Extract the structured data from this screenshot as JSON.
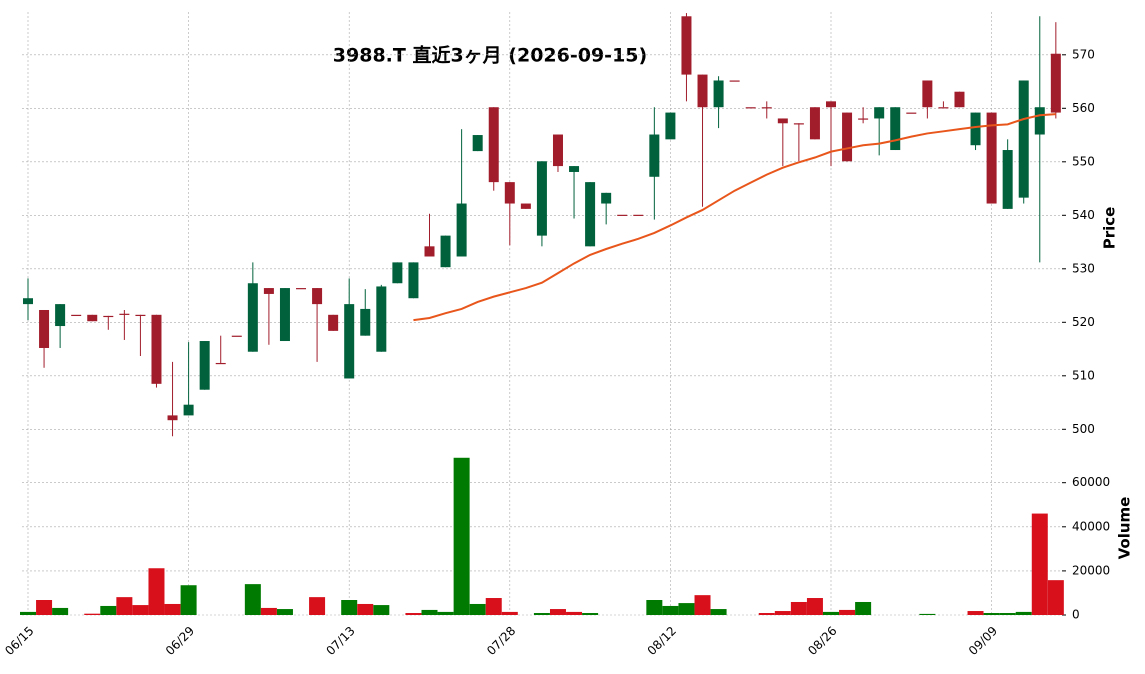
{
  "chart_data": {
    "type": "candlestick",
    "title": "3988.T  直近3ヶ月  (2026-09-15)",
    "y_label": "Price",
    "categories": [
      "06/15",
      null,
      null,
      null,
      null,
      null,
      null,
      null,
      null,
      null,
      "06/29",
      null,
      null,
      null,
      null,
      null,
      null,
      null,
      null,
      null,
      "07/13",
      null,
      null,
      null,
      null,
      null,
      null,
      null,
      null,
      null,
      "07/28",
      null,
      null,
      null,
      null,
      null,
      null,
      null,
      null,
      null,
      "08/12",
      null,
      null,
      null,
      null,
      null,
      null,
      null,
      null,
      null,
      "08/26",
      null,
      null,
      null,
      null,
      null,
      null,
      null,
      null,
      null,
      "09/09",
      null,
      null,
      null,
      null
    ],
    "open": [
      523.4,
      522.3,
      519.3,
      521.4,
      521.4,
      521.2,
      521.6,
      521.4,
      521.4,
      502.6,
      502.6,
      507.4,
      512.4,
      517.5,
      514.5,
      526.4,
      516.5,
      526.4,
      526.4,
      521.4,
      509.5,
      517.5,
      514.5,
      527.3,
      524.5,
      534.2,
      530.3,
      532.3,
      552.0,
      560.2,
      546.2,
      542.2,
      536.2,
      555.1,
      548.1,
      534.2,
      542.2,
      540.1,
      540.1,
      547.2,
      554.2,
      577.2,
      566.3,
      560.2,
      565.2,
      560.2,
      560.2,
      558.1,
      557.2,
      560.2,
      561.3,
      559.2,
      558.1,
      558.1,
      552.2,
      559.2,
      565.2,
      560.2,
      563.1,
      553.1,
      559.2,
      541.2,
      543.3,
      555.1,
      570.2
    ],
    "high": [
      528.2,
      522.3,
      523.4,
      521.4,
      521.4,
      521.2,
      522.3,
      521.4,
      521.4,
      512.6,
      516.3,
      516.5,
      517.5,
      517.5,
      531.2,
      526.4,
      526.4,
      526.4,
      526.4,
      521.4,
      528.2,
      526.2,
      527.0,
      531.2,
      531.2,
      540.3,
      536.2,
      556.1,
      555.0,
      560.2,
      546.2,
      542.2,
      550.1,
      555.1,
      549.2,
      546.2,
      544.2,
      540.1,
      540.1,
      560.2,
      559.2,
      577.8,
      566.3,
      566.0,
      565.2,
      560.2,
      561.3,
      558.1,
      557.2,
      560.2,
      561.3,
      559.2,
      560.2,
      560.2,
      560.2,
      559.2,
      565.2,
      561.3,
      563.1,
      559.2,
      559.2,
      554.2,
      565.2,
      577.2,
      576.1
    ],
    "low": [
      520.4,
      511.5,
      515.2,
      521.4,
      520.2,
      518.6,
      516.7,
      513.7,
      507.8,
      498.7,
      502.6,
      507.4,
      512.4,
      517.5,
      514.5,
      515.8,
      516.5,
      526.4,
      512.6,
      518.4,
      509.5,
      517.5,
      514.5,
      527.3,
      524.5,
      532.3,
      530.3,
      532.3,
      552.0,
      544.6,
      534.4,
      541.2,
      534.2,
      548.1,
      539.4,
      534.2,
      538.3,
      540.1,
      540.1,
      539.2,
      554.2,
      561.3,
      541.6,
      556.3,
      565.2,
      560.2,
      558.1,
      549.2,
      550.1,
      554.2,
      549.2,
      550.1,
      557.2,
      551.2,
      552.2,
      559.2,
      558.1,
      560.2,
      560.2,
      552.2,
      542.2,
      541.2,
      542.2,
      531.2,
      558.1
    ],
    "close": [
      524.5,
      515.2,
      523.4,
      521.4,
      520.2,
      521.2,
      521.6,
      521.4,
      508.5,
      501.7,
      504.6,
      516.5,
      512.4,
      517.5,
      527.3,
      525.3,
      526.4,
      526.4,
      523.4,
      518.4,
      523.4,
      522.5,
      526.7,
      531.2,
      531.2,
      532.3,
      536.2,
      542.2,
      555.0,
      546.2,
      542.2,
      541.2,
      550.1,
      549.2,
      549.2,
      546.2,
      544.2,
      540.1,
      540.1,
      555.1,
      559.2,
      566.3,
      560.2,
      565.2,
      565.2,
      560.2,
      560.2,
      557.2,
      557.2,
      554.2,
      560.2,
      550.1,
      558.1,
      560.2,
      560.2,
      559.2,
      560.2,
      560.2,
      560.2,
      559.2,
      542.2,
      552.2,
      565.2,
      560.2,
      559.2
    ],
    "up_color": "#00613c",
    "down_color": "#a11d2b",
    "ma": {
      "color": "#e8561c",
      "values": [
        null,
        null,
        null,
        null,
        null,
        null,
        null,
        null,
        null,
        null,
        null,
        null,
        null,
        null,
        null,
        null,
        null,
        null,
        null,
        null,
        null,
        null,
        null,
        null,
        520.4,
        520.8,
        521.7,
        522.5,
        523.8,
        524.8,
        525.6,
        526.4,
        527.4,
        529.2,
        531.0,
        532.6,
        533.7,
        534.7,
        535.6,
        536.7,
        538.1,
        539.6,
        541.0,
        542.8,
        544.6,
        546.1,
        547.6,
        548.9,
        549.9,
        550.8,
        551.9,
        552.5,
        553.1,
        553.4,
        554.0,
        554.7,
        555.3,
        555.7,
        556.1,
        556.5,
        556.8,
        557.0,
        558.0,
        558.7,
        558.9
      ]
    },
    "ylim": [
      498,
      578
    ],
    "yticks": [
      500,
      510,
      520,
      530,
      540,
      550,
      560,
      570
    ],
    "grid": true,
    "volume": {
      "type": "bar",
      "y_label": "Volume",
      "values": [
        1400,
        6800,
        3200,
        0,
        600,
        4100,
        8100,
        4500,
        21200,
        5000,
        13500,
        0,
        0,
        0,
        14000,
        3200,
        2700,
        0,
        8100,
        0,
        6800,
        5000,
        4500,
        0,
        900,
        2300,
        1400,
        71300,
        5000,
        7700,
        1400,
        0,
        900,
        2700,
        1400,
        900,
        0,
        0,
        0,
        6800,
        4100,
        5400,
        9000,
        2700,
        0,
        0,
        900,
        1800,
        5900,
        7700,
        1400,
        2300,
        5900,
        0,
        0,
        0,
        500,
        0,
        0,
        1800,
        900,
        900,
        1400,
        46000,
        15800
      ],
      "colors": [
        "#007a00",
        "#d7101c",
        "#007a00",
        "#007a00",
        "#d7101c",
        "#007a00",
        "#d7101c",
        "#d7101c",
        "#d7101c",
        "#d7101c",
        "#007a00",
        "#007a00",
        "#007a00",
        "#007a00",
        "#007a00",
        "#d7101c",
        "#007a00",
        "#007a00",
        "#d7101c",
        "#007a00",
        "#007a00",
        "#d7101c",
        "#007a00",
        "#007a00",
        "#d7101c",
        "#007a00",
        "#007a00",
        "#007a00",
        "#007a00",
        "#d7101c",
        "#d7101c",
        "#007a00",
        "#007a00",
        "#d7101c",
        "#d7101c",
        "#007a00",
        "#007a00",
        "#007a00",
        "#007a00",
        "#007a00",
        "#007a00",
        "#007a00",
        "#d7101c",
        "#007a00",
        "#007a00",
        "#007a00",
        "#d7101c",
        "#d7101c",
        "#d7101c",
        "#d7101c",
        "#007a00",
        "#d7101c",
        "#007a00",
        "#007a00",
        "#007a00",
        "#007a00",
        "#007a00",
        "#007a00",
        "#007a00",
        "#d7101c",
        "#007a00",
        "#007a00",
        "#007a00",
        "#d7101c",
        "#d7101c"
      ],
      "ylim": [
        0,
        78000
      ],
      "yticks": [
        0,
        20000,
        40000,
        60000
      ]
    }
  }
}
